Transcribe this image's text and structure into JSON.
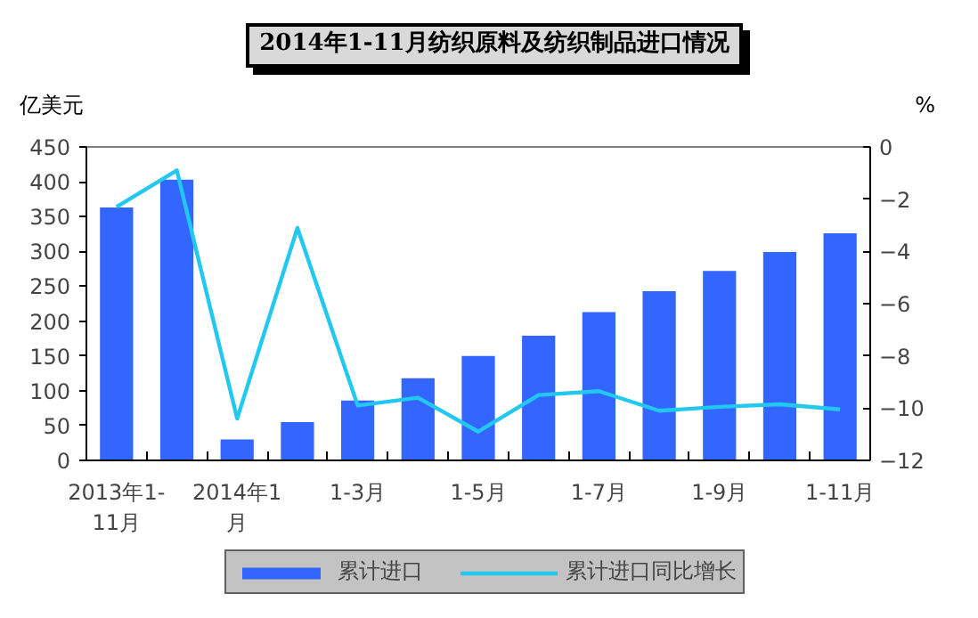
{
  "chart_data": {
    "type": "bar",
    "title": "2014年1-11月纺织原料及纺织制品进口情况",
    "ylabel": "亿美元",
    "y2label": "%",
    "categories": [
      "2013年1-11月",
      null,
      "2014年1月",
      null,
      "1-3月",
      null,
      "1-5月",
      null,
      "1-7月",
      null,
      "1-9月",
      null,
      "1-11月"
    ],
    "series": [
      {
        "name": "累计进口",
        "color": "#3366ff",
        "values": [
          363,
          403,
          30,
          55,
          86,
          118,
          150,
          179,
          213,
          243,
          272,
          299,
          326
        ]
      },
      {
        "name": "累计进口同比增长",
        "type": "line",
        "axis": "y2",
        "color": "#22c8f0",
        "values": [
          -2.3,
          -0.9,
          -10.4,
          -3.1,
          -9.9,
          -9.6,
          -10.9,
          -9.5,
          -9.35,
          -10.1,
          -9.95,
          -9.85,
          -10.05
        ]
      }
    ],
    "ylim": [
      0,
      450
    ],
    "yticks": [
      0,
      50,
      100,
      150,
      200,
      250,
      300,
      350,
      400,
      450
    ],
    "y2lim": [
      -12,
      0
    ],
    "y2ticks": [
      -12,
      -10,
      -8,
      -6,
      -4,
      -2,
      0
    ],
    "grid": false,
    "legend": "bottom",
    "marker": "none",
    "line_style": "solid"
  }
}
